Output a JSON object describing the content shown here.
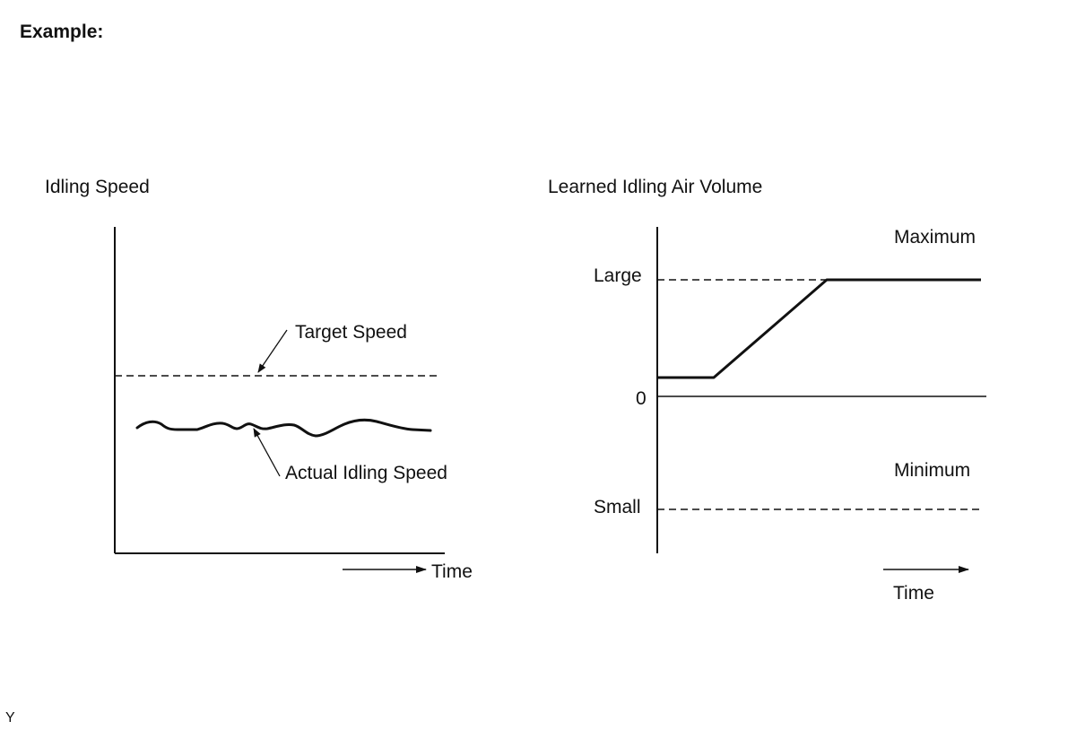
{
  "heading": "Example:",
  "footer_code": "Y",
  "chart_left": {
    "title": "Idling Speed",
    "x_axis_label": "Time",
    "target_label": "Target Speed",
    "actual_label": "Actual Idling Speed"
  },
  "chart_right": {
    "title": "Learned Idling Air Volume",
    "x_axis_label": "Time",
    "zone_upper_label": "Maximum",
    "zone_lower_label": "Minimum",
    "level_large_label": "Large",
    "level_zero_label": "0",
    "level_small_label": "Small"
  },
  "colors": {
    "line": "#111111",
    "background": "#ffffff"
  }
}
